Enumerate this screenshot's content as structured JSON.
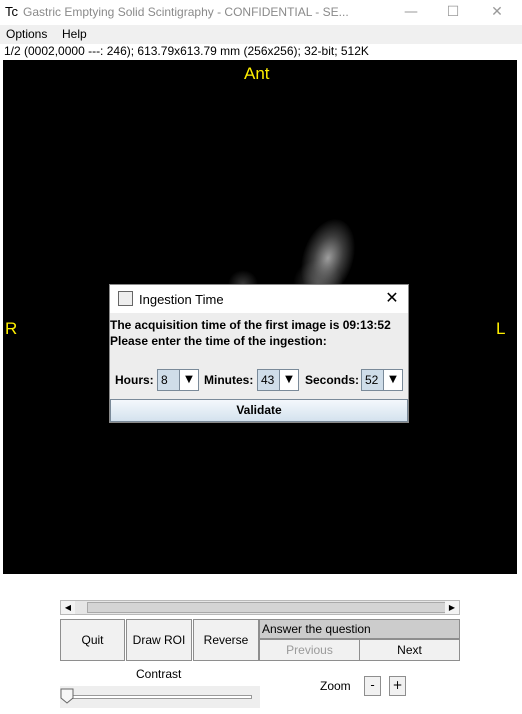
{
  "window": {
    "app_icon": "Tc",
    "title": "Gastric Emptying Solid Scintigraphy -  CONFIDENTIAL -  SE...",
    "controls": {
      "minimize": "—",
      "maximize": "☐",
      "close": "✕"
    }
  },
  "menu": {
    "items": [
      {
        "label": "Options"
      },
      {
        "label": "Help"
      }
    ]
  },
  "image_info": "1/2 (0002,0000  ---: 246); 613.79x613.79 mm (256x256); 32-bit; 512K",
  "orientation": {
    "top": "Ant",
    "left": "R",
    "right": "L"
  },
  "dialog": {
    "title": "Ingestion Time",
    "message_line1": "The acquisition time of the first image is 09:13:52",
    "message_line2": "Please enter the time of the ingestion:",
    "hours_label": "Hours:",
    "hours_value": "8",
    "minutes_label": "Minutes:",
    "minutes_value": "43",
    "seconds_label": "Seconds:",
    "seconds_value": "52",
    "validate_label": "Validate",
    "close_icon": "✕",
    "dropdown_icon": "▼"
  },
  "scrollbar": {
    "left_arrow": "◀",
    "right_arrow": "▶"
  },
  "buttons": {
    "quit": "Quit",
    "draw_roi": "Draw ROI",
    "reverse": "Reverse",
    "answer_label": "Answer the question",
    "previous": "Previous",
    "next": "Next"
  },
  "contrast": {
    "label": "Contrast",
    "level": 0
  },
  "zoom": {
    "label": "Zoom",
    "minus": "-",
    "plus": "+"
  }
}
